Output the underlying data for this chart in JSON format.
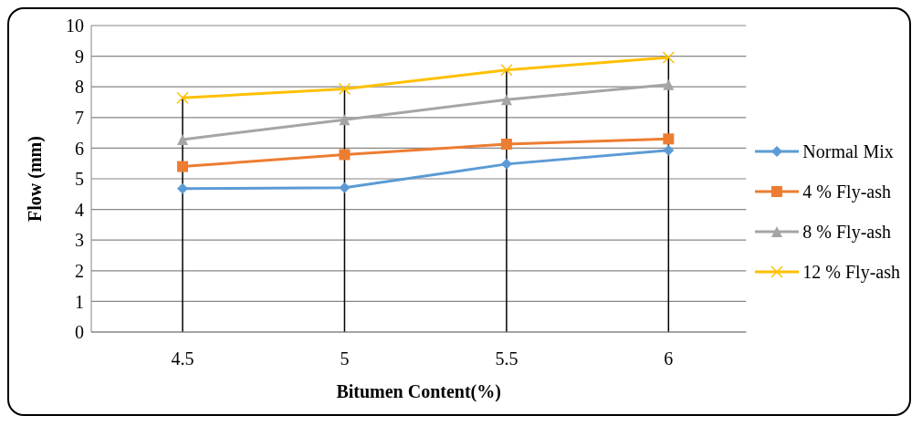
{
  "chart_data": {
    "type": "line",
    "xlabel": "Bitumen Content(%)",
    "ylabel": "Flow (mm)",
    "categories": [
      "4.5",
      "5",
      "5.5",
      "6"
    ],
    "series": [
      {
        "name": "Normal Mix",
        "color": "#5b9bd5",
        "marker": "diamond",
        "values": [
          4.68,
          4.71,
          5.48,
          5.93
        ]
      },
      {
        "name": "4 % Fly-ash",
        "color": "#ed7d31",
        "marker": "square",
        "values": [
          5.4,
          5.79,
          6.13,
          6.3
        ]
      },
      {
        "name": "8 % Fly-ash",
        "color": "#a5a5a5",
        "marker": "triangle",
        "values": [
          6.28,
          6.93,
          7.58,
          8.07
        ]
      },
      {
        "name": "12 % Fly-ash",
        "color": "#ffc000",
        "marker": "cross",
        "values": [
          7.64,
          7.93,
          8.55,
          8.96
        ]
      }
    ],
    "ylim": [
      0,
      10
    ],
    "yticks": [
      0,
      1,
      2,
      3,
      4,
      5,
      6,
      7,
      8,
      9,
      10
    ],
    "grid": true,
    "legend": "right"
  }
}
